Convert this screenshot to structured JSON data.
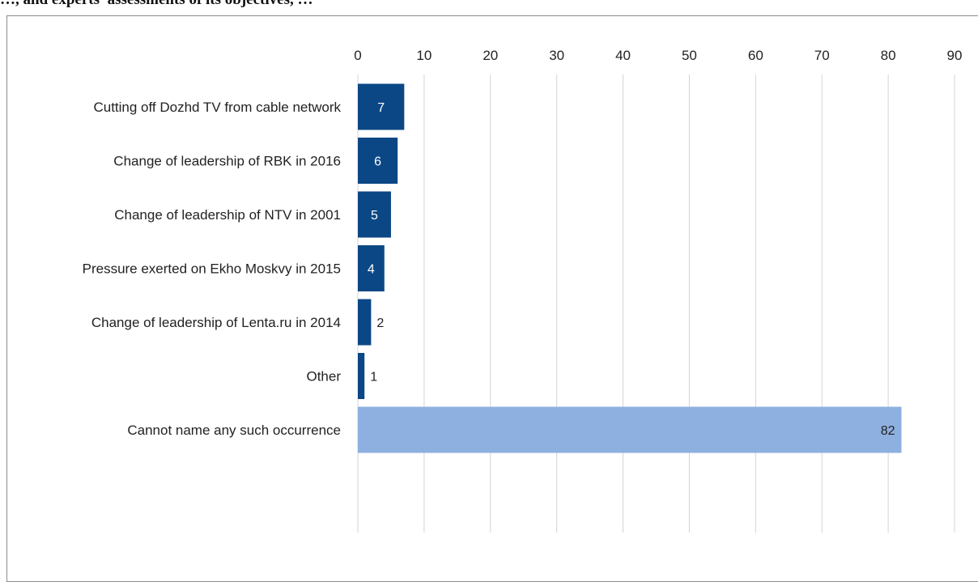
{
  "header": {
    "clipped_text": "…, and experts’ assessments of its objectives, …"
  },
  "colors": {
    "primary_bar": "#0b4785",
    "highlight_bar": "#8eb0e0",
    "grid": "#d4d4d4",
    "label_inside": "#ffffff",
    "label_outside": "#222222",
    "label_highlight": "#222222"
  },
  "chart_data": {
    "type": "bar",
    "orientation": "horizontal",
    "categories": [
      "Cutting off Dozhd TV from cable network",
      "Change of leadership of RBK in 2016",
      "Change of leadership of NTV in 2001",
      "Pressure exerted on Ekho Moskvy in 2015",
      "Change of leadership of Lenta.ru in 2014",
      "Other",
      "Cannot name any such occurrence"
    ],
    "values": [
      7,
      6,
      5,
      4,
      2,
      1,
      82
    ],
    "highlight_index": 6,
    "xlim": [
      0,
      90
    ],
    "xticks": [
      0,
      10,
      20,
      30,
      40,
      50,
      60,
      70,
      80,
      90
    ],
    "x_axis_position": "top",
    "grid": true,
    "title": "",
    "xlabel": "",
    "ylabel": ""
  }
}
